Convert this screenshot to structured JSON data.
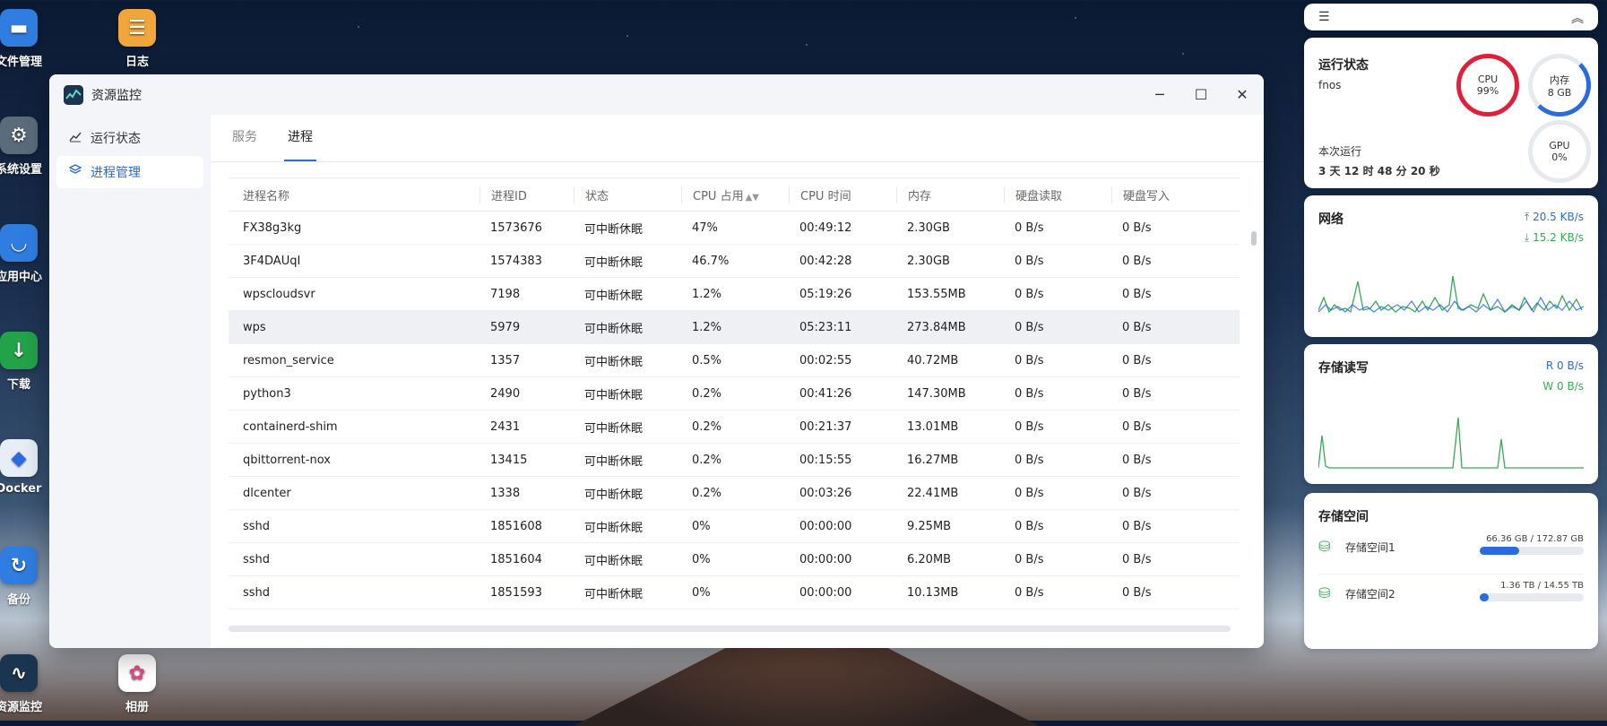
{
  "desktop": {
    "icons": [
      {
        "label": "文件管理",
        "icon": "folder-icon",
        "color": "#2f7de1"
      },
      {
        "label": "日志",
        "icon": "log-icon",
        "color": "#f0a63a"
      },
      {
        "label": "系统设置",
        "icon": "gear-icon",
        "color": "#5a6b7c"
      },
      {
        "label": "应用中心",
        "icon": "store-icon",
        "color": "#2f7de1"
      },
      {
        "label": "下载",
        "icon": "download-icon",
        "color": "#22a34a"
      },
      {
        "label": "Docker",
        "icon": "docker-icon",
        "color": "#e7eef6"
      },
      {
        "label": "备份",
        "icon": "backup-icon",
        "color": "#2f7de1"
      },
      {
        "label": "资源监控",
        "icon": "monitor-icon",
        "color": "#1b3550"
      },
      {
        "label": "相册",
        "icon": "photos-icon",
        "color": "#ffffff"
      }
    ]
  },
  "window": {
    "title": "资源监控",
    "sidebar": [
      {
        "label": "运行状态",
        "icon": "chart-line-icon"
      },
      {
        "label": "进程管理",
        "icon": "layers-icon"
      }
    ],
    "tabs": [
      "服务",
      "进程"
    ],
    "columns": [
      "进程名称",
      "进程ID",
      "状态",
      "CPU 占用",
      "CPU 时间",
      "内存",
      "硬盘读取",
      "硬盘写入"
    ],
    "rows": [
      [
        "FX38g3kg",
        "1573676",
        "可中断休眠",
        "47%",
        "00:49:12",
        "2.30GB",
        "0 B/s",
        "0 B/s"
      ],
      [
        "3F4DAUqI",
        "1574383",
        "可中断休眠",
        "46.7%",
        "00:42:28",
        "2.30GB",
        "0 B/s",
        "0 B/s"
      ],
      [
        "wpscloudsvr",
        "7198",
        "可中断休眠",
        "1.2%",
        "05:19:26",
        "153.55MB",
        "0 B/s",
        "0 B/s"
      ],
      [
        "wps",
        "5979",
        "可中断休眠",
        "1.2%",
        "05:23:11",
        "273.84MB",
        "0 B/s",
        "0 B/s"
      ],
      [
        "resmon_service",
        "1357",
        "可中断休眠",
        "0.5%",
        "00:02:55",
        "40.72MB",
        "0 B/s",
        "0 B/s"
      ],
      [
        "python3",
        "2490",
        "可中断休眠",
        "0.2%",
        "00:41:26",
        "147.30MB",
        "0 B/s",
        "0 B/s"
      ],
      [
        "containerd-shim",
        "2431",
        "可中断休眠",
        "0.2%",
        "00:21:37",
        "13.01MB",
        "0 B/s",
        "0 B/s"
      ],
      [
        "qbittorrent-nox",
        "13415",
        "可中断休眠",
        "0.2%",
        "00:15:55",
        "16.27MB",
        "0 B/s",
        "0 B/s"
      ],
      [
        "dlcenter",
        "1338",
        "可中断休眠",
        "0.2%",
        "00:03:26",
        "22.41MB",
        "0 B/s",
        "0 B/s"
      ],
      [
        "sshd",
        "1851608",
        "可中断休眠",
        "0%",
        "00:00:00",
        "9.25MB",
        "0 B/s",
        "0 B/s"
      ],
      [
        "sshd",
        "1851604",
        "可中断休眠",
        "0%",
        "00:00:00",
        "6.20MB",
        "0 B/s",
        "0 B/s"
      ],
      [
        "sshd",
        "1851593",
        "可中断休眠",
        "0%",
        "00:00:00",
        "10.13MB",
        "0 B/s",
        "0 B/s"
      ]
    ],
    "highlighted_row": 3
  },
  "widgets": {
    "status": {
      "title": "运行状态",
      "host": "fnos",
      "uptime_label": "本次运行",
      "uptime": "3 天 12 时 48 分 20 秒",
      "cpu_label": "CPU",
      "cpu_value": "99%",
      "mem_label": "内存",
      "mem_value": "8 GB",
      "gpu_label": "GPU",
      "gpu_value": "0%",
      "cpu_color": "#e0203a",
      "mem_color": "#2a6be0"
    },
    "network": {
      "title": "网络",
      "up": "20.5 KB/s",
      "down": "15.2 KB/s"
    },
    "storage_io": {
      "title": "存储读写",
      "read": "R 0 B/s",
      "write": "W 0 B/s"
    },
    "storage_space": {
      "title": "存储空间",
      "volumes": [
        {
          "name": "存储空间1",
          "used": "66.36 GB",
          "total": "172.87 GB",
          "fraction": 0.38
        },
        {
          "name": "存储空间2",
          "used": "1.36 TB",
          "total": "14.55 TB",
          "fraction": 0.09
        }
      ]
    }
  }
}
